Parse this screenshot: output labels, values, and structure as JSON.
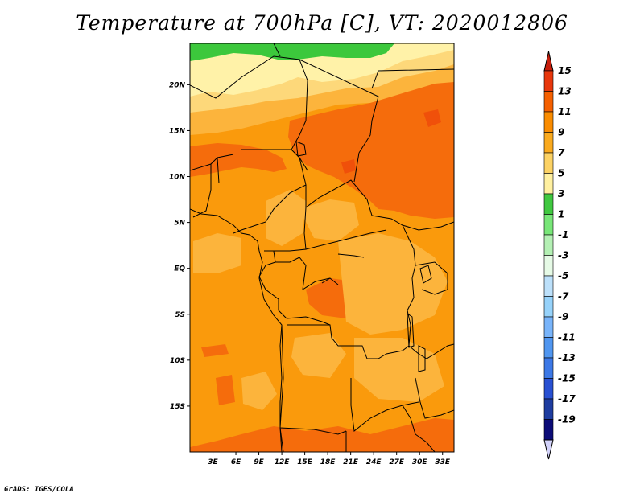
{
  "title": "Temperature at 700hPa [C], VT: 2020012806",
  "credit": "GrADS: IGES/COLA",
  "map": {
    "lon_range": [
      0,
      34.5
    ],
    "lat_range": [
      -20,
      24.5
    ],
    "lat_ticks": [
      {
        "value": 20,
        "label": "20N"
      },
      {
        "value": 15,
        "label": "15N"
      },
      {
        "value": 10,
        "label": "10N"
      },
      {
        "value": 5,
        "label": "5N"
      },
      {
        "value": 0,
        "label": "EQ"
      },
      {
        "value": -5,
        "label": "5S"
      },
      {
        "value": -10,
        "label": "10S"
      },
      {
        "value": -15,
        "label": "15S"
      }
    ],
    "lon_ticks": [
      {
        "value": 3,
        "label": "3E"
      },
      {
        "value": 6,
        "label": "6E"
      },
      {
        "value": 9,
        "label": "9E"
      },
      {
        "value": 12,
        "label": "12E"
      },
      {
        "value": 15,
        "label": "15E"
      },
      {
        "value": 18,
        "label": "18E"
      },
      {
        "value": 21,
        "label": "21E"
      },
      {
        "value": 24,
        "label": "24E"
      },
      {
        "value": 27,
        "label": "27E"
      },
      {
        "value": 30,
        "label": "30E"
      },
      {
        "value": 33,
        "label": "33E"
      }
    ]
  },
  "colorbar": {
    "labels": [
      "15",
      "13",
      "11",
      "9",
      "7",
      "5",
      "3",
      "1",
      "-1",
      "-3",
      "-5",
      "-7",
      "-9",
      "-11",
      "-13",
      "-15",
      "-17",
      "-19"
    ],
    "colors": [
      "#e8370c",
      "#f56000",
      "#fa8c00",
      "#faaa1e",
      "#fcd264",
      "#fff0a0",
      "#40c840",
      "#78e678",
      "#b4f0b4",
      "#e6fae6",
      "#bce0fa",
      "#96d2fa",
      "#78b4fa",
      "#5096f0",
      "#3c78e6",
      "#2850d2",
      "#1e3ca0",
      "#0c0c78"
    ],
    "top_color": "#c81e0c",
    "bottom_color": "#d2d2fa"
  },
  "colors": {
    "land_base": "#fa9a0c",
    "warm": "#f56c0c",
    "hot": "#f0500a",
    "light": "#fcb43c",
    "pale": "#fdd87a",
    "paler": "#fff2a8",
    "green": "#3cc83c",
    "border": "#000000"
  }
}
